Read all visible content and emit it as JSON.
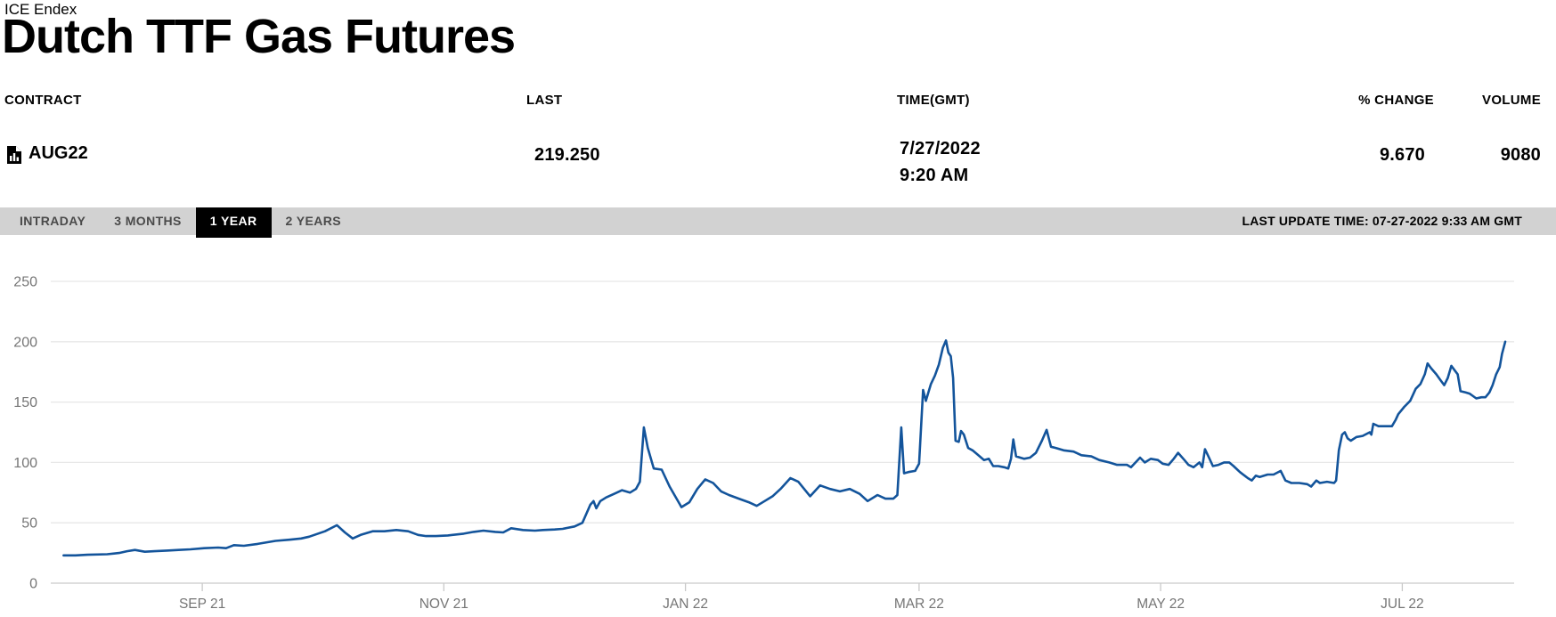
{
  "header": {
    "exchange": "ICE Endex",
    "title": "Dutch TTF Gas Futures"
  },
  "quote_table": {
    "columns": [
      "CONTRACT",
      "LAST",
      "TIME(GMT)",
      "% CHANGE",
      "VOLUME"
    ],
    "row": {
      "contract": "AUG22",
      "contract_icon": "document-bar-chart-icon",
      "last": "219.250",
      "time_date": "7/27/2022",
      "time_clock": "9:20 AM",
      "pct_change": "9.670",
      "volume": "9080"
    }
  },
  "range_tabs": {
    "items": [
      {
        "label": "INTRADAY",
        "selected": false
      },
      {
        "label": "3 MONTHS",
        "selected": false
      },
      {
        "label": "1 YEAR",
        "selected": true
      },
      {
        "label": "2 YEARS",
        "selected": false
      }
    ],
    "last_update": "LAST UPDATE TIME: 07-27-2022 9:33 AM GMT"
  },
  "chart_data": {
    "type": "line",
    "title": "Dutch TTF Gas Futures AUG22 price, 1 year",
    "xlabel": "",
    "ylabel": "",
    "x_axis": {
      "unit": "days since 2021-07-27",
      "range": [
        0,
        365
      ],
      "ticks": [
        {
          "day": 36,
          "label": "SEP 21"
        },
        {
          "day": 97,
          "label": "NOV 21"
        },
        {
          "day": 158,
          "label": "JAN 22"
        },
        {
          "day": 217,
          "label": "MAR 22"
        },
        {
          "day": 278,
          "label": "MAY 22"
        },
        {
          "day": 339,
          "label": "JUL 22"
        }
      ]
    },
    "y_axis": {
      "range": [
        0,
        265
      ],
      "ticks": [
        0,
        50,
        100,
        150,
        200,
        250
      ]
    },
    "grid": true,
    "legend": false,
    "line_color": "#13549b",
    "grid_color": "#e7e7e7",
    "axis_line_color": "#c9c9c9",
    "label_color": "#757575",
    "series": [
      {
        "name": "AUG22",
        "points": [
          [
            1,
            23
          ],
          [
            4,
            23
          ],
          [
            7,
            23.5
          ],
          [
            12,
            24
          ],
          [
            15,
            25
          ],
          [
            17,
            26.5
          ],
          [
            19,
            27.5
          ],
          [
            21.5,
            26
          ],
          [
            24,
            26.5
          ],
          [
            27,
            27
          ],
          [
            30,
            27.5
          ],
          [
            33,
            28
          ],
          [
            36.5,
            29
          ],
          [
            40,
            29.5
          ],
          [
            42,
            29
          ],
          [
            44,
            31.5
          ],
          [
            46.5,
            31
          ],
          [
            50,
            32.5
          ],
          [
            54.5,
            35
          ],
          [
            58,
            36
          ],
          [
            61,
            37
          ],
          [
            63,
            38.5
          ],
          [
            67,
            43
          ],
          [
            70,
            48
          ],
          [
            72,
            42
          ],
          [
            74,
            37
          ],
          [
            76,
            40
          ],
          [
            79,
            43
          ],
          [
            82,
            43
          ],
          [
            85,
            44
          ],
          [
            88,
            43
          ],
          [
            90.5,
            40
          ],
          [
            92.5,
            39
          ],
          [
            95,
            39
          ],
          [
            98,
            39.5
          ],
          [
            102,
            41
          ],
          [
            104.5,
            42.5
          ],
          [
            107,
            43.5
          ],
          [
            110,
            42.5
          ],
          [
            112,
            42
          ],
          [
            114,
            45.5
          ],
          [
            117,
            44
          ],
          [
            120,
            43.5
          ],
          [
            122,
            44
          ],
          [
            125,
            44.5
          ],
          [
            127,
            45
          ],
          [
            130,
            47
          ],
          [
            132,
            50
          ],
          [
            134,
            65
          ],
          [
            134.8,
            68
          ],
          [
            135.5,
            62
          ],
          [
            136.5,
            68
          ],
          [
            138,
            71
          ],
          [
            140,
            74
          ],
          [
            142,
            77
          ],
          [
            144,
            75
          ],
          [
            145.5,
            78
          ],
          [
            146.5,
            84
          ],
          [
            147.5,
            129
          ],
          [
            148.5,
            112
          ],
          [
            150,
            95
          ],
          [
            152,
            94
          ],
          [
            154,
            80
          ],
          [
            157,
            63
          ],
          [
            159,
            67
          ],
          [
            161,
            78
          ],
          [
            163,
            86
          ],
          [
            165,
            83
          ],
          [
            167,
            76
          ],
          [
            169,
            73
          ],
          [
            171.5,
            70
          ],
          [
            174,
            67
          ],
          [
            176,
            64
          ],
          [
            178,
            68
          ],
          [
            180,
            72
          ],
          [
            182,
            78
          ],
          [
            184.5,
            87
          ],
          [
            186.5,
            84
          ],
          [
            189.5,
            72
          ],
          [
            192,
            81
          ],
          [
            194.5,
            78
          ],
          [
            197,
            76
          ],
          [
            199.5,
            78
          ],
          [
            202,
            74
          ],
          [
            204,
            68
          ],
          [
            206.5,
            73
          ],
          [
            208.5,
            70
          ],
          [
            210.5,
            70
          ],
          [
            211.5,
            73
          ],
          [
            212.5,
            129
          ],
          [
            213.2,
            91
          ],
          [
            214.3,
            92
          ],
          [
            216,
            93
          ],
          [
            217,
            99
          ],
          [
            218,
            160
          ],
          [
            218.7,
            151
          ],
          [
            220,
            165
          ],
          [
            221,
            172
          ],
          [
            222,
            181
          ],
          [
            223,
            195
          ],
          [
            223.8,
            201
          ],
          [
            224.4,
            191
          ],
          [
            225,
            188
          ],
          [
            225.6,
            170
          ],
          [
            226.2,
            118
          ],
          [
            227,
            117
          ],
          [
            227.6,
            126
          ],
          [
            228.3,
            123
          ],
          [
            229.4,
            112
          ],
          [
            230.5,
            110
          ],
          [
            231.6,
            107
          ],
          [
            233.4,
            102
          ],
          [
            234.6,
            103
          ],
          [
            235.7,
            97
          ],
          [
            237,
            97
          ],
          [
            238.5,
            96
          ],
          [
            239.5,
            95
          ],
          [
            240.2,
            103
          ],
          [
            240.8,
            119
          ],
          [
            241.5,
            105
          ],
          [
            243.5,
            103
          ],
          [
            245,
            104
          ],
          [
            246.5,
            108
          ],
          [
            248,
            118
          ],
          [
            249.2,
            127
          ],
          [
            250.3,
            113
          ],
          [
            251.5,
            112
          ],
          [
            253.5,
            110
          ],
          [
            256,
            109
          ],
          [
            258,
            106
          ],
          [
            260.5,
            105
          ],
          [
            262.5,
            102
          ],
          [
            265,
            100
          ],
          [
            267,
            98
          ],
          [
            269.5,
            98
          ],
          [
            270.5,
            96
          ],
          [
            272.8,
            104
          ],
          [
            274,
            100
          ],
          [
            275.5,
            103
          ],
          [
            277.3,
            102
          ],
          [
            278.5,
            99
          ],
          [
            280,
            98
          ],
          [
            281.3,
            103
          ],
          [
            282.4,
            108
          ],
          [
            284,
            102
          ],
          [
            285,
            98
          ],
          [
            286.3,
            96
          ],
          [
            287.8,
            100
          ],
          [
            288.5,
            96
          ],
          [
            289.2,
            111
          ],
          [
            290.2,
            104
          ],
          [
            291.2,
            97
          ],
          [
            292.6,
            98
          ],
          [
            294,
            100
          ],
          [
            295.3,
            100
          ],
          [
            296.4,
            97
          ],
          [
            298,
            92
          ],
          [
            300,
            87
          ],
          [
            301,
            85
          ],
          [
            302,
            89
          ],
          [
            303,
            88
          ],
          [
            305,
            90
          ],
          [
            306.5,
            90
          ],
          [
            308.3,
            93
          ],
          [
            309.5,
            85
          ],
          [
            311,
            83
          ],
          [
            313,
            83
          ],
          [
            315,
            82
          ],
          [
            316,
            80
          ],
          [
            317.3,
            85
          ],
          [
            318.2,
            83
          ],
          [
            320,
            84
          ],
          [
            321.8,
            83
          ],
          [
            322.3,
            85
          ],
          [
            323,
            110
          ],
          [
            323.8,
            123
          ],
          [
            324.5,
            125
          ],
          [
            325.2,
            120
          ],
          [
            326,
            118
          ],
          [
            327.4,
            121
          ],
          [
            329,
            122
          ],
          [
            330.8,
            125
          ],
          [
            331.2,
            123
          ],
          [
            331.7,
            132
          ],
          [
            333,
            130
          ],
          [
            335,
            130
          ],
          [
            336.4,
            130
          ],
          [
            337.3,
            135
          ],
          [
            338,
            140
          ],
          [
            339.5,
            146
          ],
          [
            341,
            151
          ],
          [
            342.4,
            161
          ],
          [
            343.6,
            165
          ],
          [
            344.7,
            173
          ],
          [
            345.4,
            182
          ],
          [
            346.3,
            178
          ],
          [
            347.6,
            173
          ],
          [
            348.7,
            168
          ],
          [
            349.6,
            164
          ],
          [
            350.5,
            170
          ],
          [
            351.4,
            180
          ],
          [
            352.3,
            176
          ],
          [
            353,
            173
          ],
          [
            353.7,
            159
          ],
          [
            355,
            158
          ],
          [
            356,
            157
          ],
          [
            357.7,
            153
          ],
          [
            359,
            154
          ],
          [
            360,
            154
          ],
          [
            361,
            158
          ],
          [
            361.8,
            164
          ],
          [
            362.7,
            173
          ],
          [
            363.6,
            179
          ],
          [
            364.2,
            190
          ],
          [
            365,
            200
          ]
        ]
      }
    ]
  }
}
